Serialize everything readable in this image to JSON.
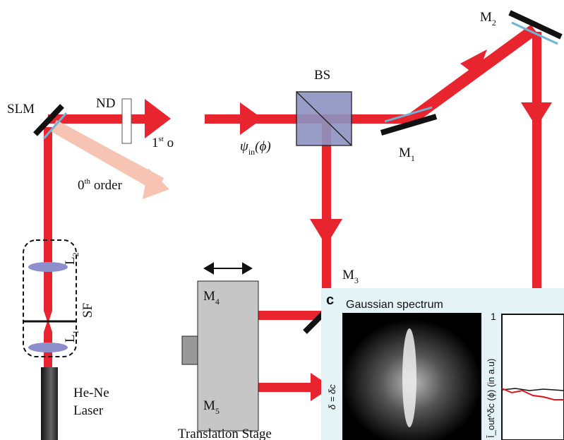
{
  "labels": {
    "slm": "SLM",
    "nd": "ND",
    "first_order": {
      "base": "1",
      "sup": "st",
      "rest": " o"
    },
    "zeroth_order": {
      "base": "0",
      "sup": "th",
      "rest": " order"
    },
    "bs": "BS",
    "psi_in": {
      "base": "ψ",
      "sub": "in",
      "rest": "(ϕ)"
    },
    "m1": {
      "base": "M",
      "sub": "1"
    },
    "m2": {
      "base": "M",
      "sub": "2"
    },
    "m3": {
      "base": "M",
      "sub": "3"
    },
    "m4": {
      "base": "M",
      "sub": "4"
    },
    "m5": {
      "base": "M",
      "sub": "5"
    },
    "l1": {
      "base": "L",
      "sub": "1"
    },
    "l2": {
      "base": "L",
      "sub": "2"
    },
    "sf": "SF",
    "laser_line1": "He-Ne",
    "laser_line2": "Laser",
    "translation_stage": "Translation Stage"
  },
  "inset": {
    "panel_letter": "c",
    "title": "Gaussian spectrum",
    "image_label": "δ = δc",
    "y_tick_top": "1",
    "y_axis_label": "Ī_out^δc (ϕ) (in a.u)"
  }
}
